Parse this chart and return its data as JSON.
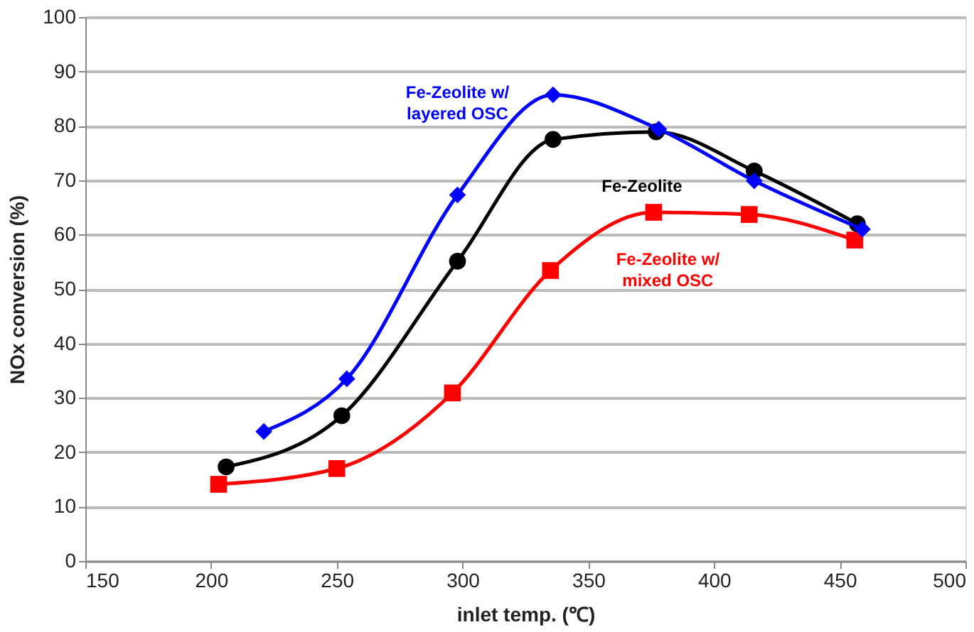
{
  "chart_data": {
    "type": "line",
    "xlabel": "inlet temp. (℃)",
    "ylabel": "NOx conversion (%)",
    "xlim": [
      150,
      500
    ],
    "xticks": [
      150,
      200,
      250,
      300,
      350,
      400,
      450,
      500
    ],
    "ylim": [
      0,
      100
    ],
    "yticks": [
      0,
      10,
      20,
      30,
      40,
      50,
      60,
      70,
      80,
      90,
      100
    ],
    "grid": "y",
    "legend": false,
    "series": [
      {
        "name": "Fe-Zeolite w/ layered OSC",
        "color": "#0000ff",
        "marker": "diamond",
        "x": [
          221,
          254,
          298,
          336,
          378,
          416,
          459
        ],
        "values": [
          23.8,
          33.5,
          67.3,
          85.7,
          79.4,
          69.9,
          61
        ]
      },
      {
        "name": "Fe-Zeolite",
        "color": "#000000",
        "marker": "circle",
        "x": [
          206,
          252,
          298,
          336,
          377,
          416,
          457
        ],
        "values": [
          17.3,
          26.7,
          55.1,
          77.5,
          78.9,
          71.7,
          62
        ]
      },
      {
        "name": "Fe-Zeolite w/ mixed OSC",
        "color": "#ff0000",
        "marker": "square",
        "x": [
          203,
          250,
          296,
          335,
          376,
          414,
          456
        ],
        "values": [
          14.1,
          17.0,
          30.9,
          53.4,
          64.1,
          63.7,
          59
        ]
      }
    ]
  }
}
